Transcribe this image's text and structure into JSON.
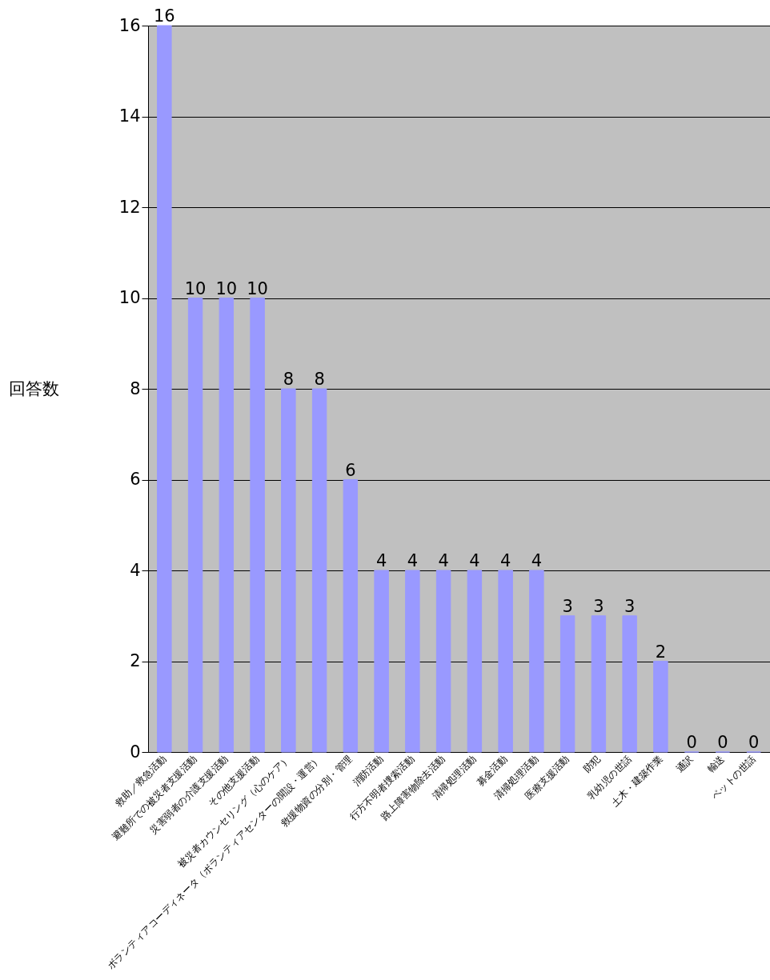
{
  "chart_data": {
    "type": "bar",
    "ylabel": "回答数",
    "categories": [
      "救助／救急活動",
      "避難所での被災者支援活動",
      "災害弱者の介護支援活動",
      "その他支援活動",
      "被災者カウンセリング（心のケア）",
      "ボランティアコーディネータ（ボランティアセンターの開設・運営）",
      "救援物資の分別・管理",
      "消防活動",
      "行方不明者捜索活動",
      "路上障害物除去活動",
      "清掃処理活動",
      "募金活動",
      "清掃処理活動",
      "医療支援活動",
      "防犯",
      "乳幼児の世話",
      "土木・建築作業",
      "通訳",
      "輸送",
      "ペットの世話"
    ],
    "values": [
      16,
      10,
      10,
      10,
      8,
      8,
      6,
      4,
      4,
      4,
      4,
      4,
      4,
      3,
      3,
      3,
      2,
      0,
      0,
      0
    ],
    "color": "#9999ff",
    "ylim": [
      0,
      16
    ],
    "yticks": [
      0,
      2,
      4,
      6,
      8,
      10,
      12,
      14,
      16
    ],
    "grid": "y",
    "data_labels": true
  }
}
